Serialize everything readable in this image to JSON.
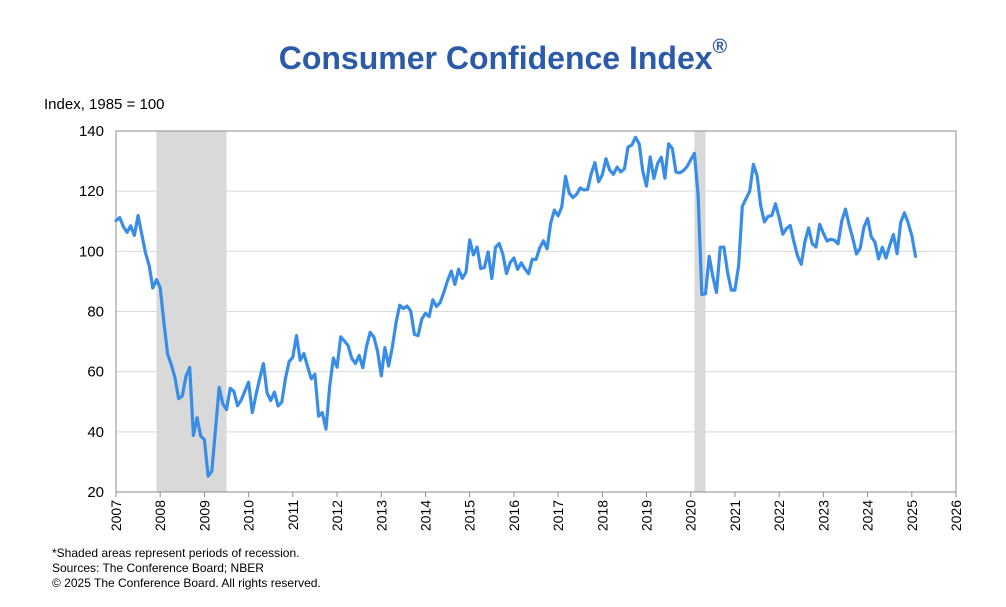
{
  "chart_data": {
    "type": "line",
    "title": "Consumer Confidence Index",
    "title_mark": "®",
    "ylabel": "Index, 1985 = 100",
    "ylim": [
      20,
      140
    ],
    "yticks": [
      20,
      40,
      60,
      80,
      100,
      120,
      140
    ],
    "xlim": [
      2007,
      2026
    ],
    "xticks": [
      "2007",
      "2008",
      "2009",
      "2010",
      "2011",
      "2012",
      "2013",
      "2014",
      "2015",
      "2016",
      "2017",
      "2018",
      "2019",
      "2020",
      "2021",
      "2022",
      "2023",
      "2024",
      "2025",
      "2026"
    ],
    "grid": "horizontal",
    "line_color": "#3a8de6",
    "recession_color": "#d9d9d9",
    "recessions": [
      {
        "start": "2007-12",
        "end": "2009-06"
      },
      {
        "start": "2020-02",
        "end": "2020-04"
      }
    ],
    "series": [
      {
        "name": "",
        "points": [
          [
            "2007-01",
            110.2
          ],
          [
            "2007-02",
            111.2
          ],
          [
            "2007-03",
            108.2
          ],
          [
            "2007-04",
            106.3
          ],
          [
            "2007-05",
            108.5
          ],
          [
            "2007-06",
            105.3
          ],
          [
            "2007-07",
            111.9
          ],
          [
            "2007-08",
            105.6
          ],
          [
            "2007-09",
            99.5
          ],
          [
            "2007-10",
            95.2
          ],
          [
            "2007-11",
            87.8
          ],
          [
            "2007-12",
            90.6
          ],
          [
            "2008-01",
            87.9
          ],
          [
            "2008-02",
            76.4
          ],
          [
            "2008-03",
            65.9
          ],
          [
            "2008-04",
            62.3
          ],
          [
            "2008-05",
            58.1
          ],
          [
            "2008-06",
            51.0
          ],
          [
            "2008-07",
            51.9
          ],
          [
            "2008-08",
            58.5
          ],
          [
            "2008-09",
            61.4
          ],
          [
            "2008-10",
            38.8
          ],
          [
            "2008-11",
            44.7
          ],
          [
            "2008-12",
            38.6
          ],
          [
            "2009-01",
            37.4
          ],
          [
            "2009-02",
            25.3
          ],
          [
            "2009-03",
            26.9
          ],
          [
            "2009-04",
            40.8
          ],
          [
            "2009-05",
            54.8
          ],
          [
            "2009-06",
            49.3
          ],
          [
            "2009-07",
            47.4
          ],
          [
            "2009-08",
            54.5
          ],
          [
            "2009-09",
            53.4
          ],
          [
            "2009-10",
            48.7
          ],
          [
            "2009-11",
            50.6
          ],
          [
            "2009-12",
            53.6
          ],
          [
            "2010-01",
            56.5
          ],
          [
            "2010-02",
            46.4
          ],
          [
            "2010-03",
            52.3
          ],
          [
            "2010-04",
            57.7
          ],
          [
            "2010-05",
            62.7
          ],
          [
            "2010-06",
            52.9
          ],
          [
            "2010-07",
            50.4
          ],
          [
            "2010-08",
            53.2
          ],
          [
            "2010-09",
            48.6
          ],
          [
            "2010-10",
            49.9
          ],
          [
            "2010-11",
            57.8
          ],
          [
            "2010-12",
            63.4
          ],
          [
            "2011-01",
            64.8
          ],
          [
            "2011-02",
            72.0
          ],
          [
            "2011-03",
            63.8
          ],
          [
            "2011-04",
            66.0
          ],
          [
            "2011-05",
            61.7
          ],
          [
            "2011-06",
            57.6
          ],
          [
            "2011-07",
            59.2
          ],
          [
            "2011-08",
            45.2
          ],
          [
            "2011-09",
            46.4
          ],
          [
            "2011-10",
            40.9
          ],
          [
            "2011-11",
            55.2
          ],
          [
            "2011-12",
            64.5
          ],
          [
            "2012-01",
            61.5
          ],
          [
            "2012-02",
            71.6
          ],
          [
            "2012-03",
            70.2
          ],
          [
            "2012-04",
            68.7
          ],
          [
            "2012-05",
            64.4
          ],
          [
            "2012-06",
            62.7
          ],
          [
            "2012-07",
            65.4
          ],
          [
            "2012-08",
            61.3
          ],
          [
            "2012-09",
            68.4
          ],
          [
            "2012-10",
            73.1
          ],
          [
            "2012-11",
            71.5
          ],
          [
            "2012-12",
            66.7
          ],
          [
            "2013-01",
            58.6
          ],
          [
            "2013-02",
            68.0
          ],
          [
            "2013-03",
            61.9
          ],
          [
            "2013-04",
            68.1
          ],
          [
            "2013-05",
            76.2
          ],
          [
            "2013-06",
            82.1
          ],
          [
            "2013-07",
            81.0
          ],
          [
            "2013-08",
            81.8
          ],
          [
            "2013-09",
            80.2
          ],
          [
            "2013-10",
            72.4
          ],
          [
            "2013-11",
            72.0
          ],
          [
            "2013-12",
            77.5
          ],
          [
            "2014-01",
            79.4
          ],
          [
            "2014-02",
            78.3
          ],
          [
            "2014-03",
            83.9
          ],
          [
            "2014-04",
            81.7
          ],
          [
            "2014-05",
            83.0
          ],
          [
            "2014-06",
            86.4
          ],
          [
            "2014-07",
            90.3
          ],
          [
            "2014-08",
            93.4
          ],
          [
            "2014-09",
            89.0
          ],
          [
            "2014-10",
            94.1
          ],
          [
            "2014-11",
            91.0
          ],
          [
            "2014-12",
            93.1
          ],
          [
            "2015-01",
            103.8
          ],
          [
            "2015-02",
            98.8
          ],
          [
            "2015-03",
            101.4
          ],
          [
            "2015-04",
            94.3
          ],
          [
            "2015-05",
            94.6
          ],
          [
            "2015-06",
            99.8
          ],
          [
            "2015-07",
            91.0
          ],
          [
            "2015-08",
            101.3
          ],
          [
            "2015-09",
            102.6
          ],
          [
            "2015-10",
            99.1
          ],
          [
            "2015-11",
            92.6
          ],
          [
            "2015-12",
            96.3
          ],
          [
            "2016-01",
            97.8
          ],
          [
            "2016-02",
            94.0
          ],
          [
            "2016-03",
            96.2
          ],
          [
            "2016-04",
            94.2
          ],
          [
            "2016-05",
            92.6
          ],
          [
            "2016-06",
            97.4
          ],
          [
            "2016-07",
            97.3
          ],
          [
            "2016-08",
            101.1
          ],
          [
            "2016-09",
            103.5
          ],
          [
            "2016-10",
            100.8
          ],
          [
            "2016-11",
            109.4
          ],
          [
            "2016-12",
            113.7
          ],
          [
            "2017-01",
            111.8
          ],
          [
            "2017-02",
            114.8
          ],
          [
            "2017-03",
            124.9
          ],
          [
            "2017-04",
            119.4
          ],
          [
            "2017-05",
            117.9
          ],
          [
            "2017-06",
            118.9
          ],
          [
            "2017-07",
            121.1
          ],
          [
            "2017-08",
            120.4
          ],
          [
            "2017-09",
            120.6
          ],
          [
            "2017-10",
            125.9
          ],
          [
            "2017-11",
            129.5
          ],
          [
            "2017-12",
            123.1
          ],
          [
            "2018-01",
            125.4
          ],
          [
            "2018-02",
            130.8
          ],
          [
            "2018-03",
            127.0
          ],
          [
            "2018-04",
            125.6
          ],
          [
            "2018-05",
            128.0
          ],
          [
            "2018-06",
            126.4
          ],
          [
            "2018-07",
            127.4
          ],
          [
            "2018-08",
            134.7
          ],
          [
            "2018-09",
            135.3
          ],
          [
            "2018-10",
            137.9
          ],
          [
            "2018-11",
            135.7
          ],
          [
            "2018-12",
            126.6
          ],
          [
            "2019-01",
            121.7
          ],
          [
            "2019-02",
            131.4
          ],
          [
            "2019-03",
            124.2
          ],
          [
            "2019-04",
            129.2
          ],
          [
            "2019-05",
            131.3
          ],
          [
            "2019-06",
            124.3
          ],
          [
            "2019-07",
            135.7
          ],
          [
            "2019-08",
            134.2
          ],
          [
            "2019-09",
            126.3
          ],
          [
            "2019-10",
            126.1
          ],
          [
            "2019-11",
            126.8
          ],
          [
            "2019-12",
            128.2
          ],
          [
            "2020-01",
            130.4
          ],
          [
            "2020-02",
            132.6
          ],
          [
            "2020-03",
            118.8
          ],
          [
            "2020-04",
            85.7
          ],
          [
            "2020-05",
            85.9
          ],
          [
            "2020-06",
            98.3
          ],
          [
            "2020-07",
            91.7
          ],
          [
            "2020-08",
            86.3
          ],
          [
            "2020-09",
            101.3
          ],
          [
            "2020-10",
            101.4
          ],
          [
            "2020-11",
            92.9
          ],
          [
            "2020-12",
            87.1
          ],
          [
            "2021-01",
            87.1
          ],
          [
            "2021-02",
            95.2
          ],
          [
            "2021-03",
            114.9
          ],
          [
            "2021-04",
            117.5
          ],
          [
            "2021-05",
            120.0
          ],
          [
            "2021-06",
            128.9
          ],
          [
            "2021-07",
            125.1
          ],
          [
            "2021-08",
            115.2
          ],
          [
            "2021-09",
            109.8
          ],
          [
            "2021-10",
            111.6
          ],
          [
            "2021-11",
            111.9
          ],
          [
            "2021-12",
            115.8
          ],
          [
            "2022-01",
            111.1
          ],
          [
            "2022-02",
            105.7
          ],
          [
            "2022-03",
            107.6
          ],
          [
            "2022-04",
            108.6
          ],
          [
            "2022-05",
            103.2
          ],
          [
            "2022-06",
            98.4
          ],
          [
            "2022-07",
            95.7
          ],
          [
            "2022-08",
            103.2
          ],
          [
            "2022-09",
            107.8
          ],
          [
            "2022-10",
            102.5
          ],
          [
            "2022-11",
            101.4
          ],
          [
            "2022-12",
            109.0
          ],
          [
            "2023-01",
            106.0
          ],
          [
            "2023-02",
            103.4
          ],
          [
            "2023-03",
            104.0
          ],
          [
            "2023-04",
            103.7
          ],
          [
            "2023-05",
            102.5
          ],
          [
            "2023-06",
            110.1
          ],
          [
            "2023-07",
            114.0
          ],
          [
            "2023-08",
            108.7
          ],
          [
            "2023-09",
            104.3
          ],
          [
            "2023-10",
            99.1
          ],
          [
            "2023-11",
            101.0
          ],
          [
            "2023-12",
            108.0
          ],
          [
            "2024-01",
            110.9
          ],
          [
            "2024-02",
            104.8
          ],
          [
            "2024-03",
            103.1
          ],
          [
            "2024-04",
            97.5
          ],
          [
            "2024-05",
            101.3
          ],
          [
            "2024-06",
            97.8
          ],
          [
            "2024-07",
            101.9
          ],
          [
            "2024-08",
            105.6
          ],
          [
            "2024-09",
            99.2
          ],
          [
            "2024-10",
            109.6
          ],
          [
            "2024-11",
            112.8
          ],
          [
            "2024-12",
            109.5
          ],
          [
            "2025-01",
            105.3
          ],
          [
            "2025-02",
            98.3
          ]
        ]
      }
    ]
  },
  "footer": {
    "note": "*Shaded areas represent periods of recession.",
    "sources": "Sources: The Conference Board;  NBER",
    "copyright": "© 2025 The Conference Board. All rights reserved."
  }
}
